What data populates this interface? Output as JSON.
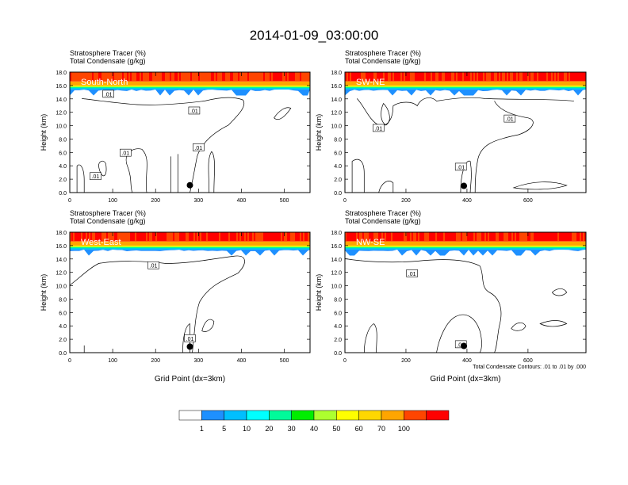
{
  "title": "2014-01-09_03:00:00",
  "panel_subtitle_1": "Stratosphere Tracer   (%)",
  "panel_subtitle_2": "Total Condensate   (g/kg)",
  "ylabel": "Height (km)",
  "xlabel": "Grid Point (dx=3km)",
  "contour_note": "Total Condensate Contours: .01 to .01 by .000",
  "chart_data": {
    "type": "heatmap",
    "colorbar": {
      "ticks": [
        "1",
        "5",
        "10",
        "20",
        "30",
        "40",
        "50",
        "60",
        "70",
        "100"
      ],
      "colors": [
        "#ffffff",
        "#1e90ff",
        "#00bfff",
        "#00ffff",
        "#00fa9a",
        "#00ee00",
        "#adff2f",
        "#ffff00",
        "#ffd700",
        "#ffa500",
        "#ff4500",
        "#ff0000"
      ]
    },
    "panels": [
      {
        "label": "South-North",
        "xlim": [
          0,
          560
        ],
        "xticks": [
          0,
          100,
          200,
          300,
          400,
          500
        ],
        "ylim": [
          0,
          18
        ],
        "yticks": [
          "0.0",
          "2.0",
          "4.0",
          "6.0",
          "8.0",
          "10.0",
          "12.0",
          "14.0",
          "16.0",
          "18.0"
        ],
        "contour_labels": [
          {
            "text": ".01",
            "x": 90,
            "y": 14.7
          },
          {
            "text": ".01",
            "x": 290,
            "y": 12.2
          },
          {
            "text": ".01",
            "x": 130,
            "y": 5.9
          },
          {
            "text": ".01",
            "x": 60,
            "y": 2.4
          },
          {
            "text": ".01",
            "x": 300,
            "y": 6.7
          }
        ],
        "marker": {
          "x": 280,
          "y": 1.1
        }
      },
      {
        "label": "SW-NE",
        "xlim": [
          0,
          790
        ],
        "xticks": [
          0,
          200,
          400,
          600
        ],
        "ylim": [
          0,
          18
        ],
        "yticks": [
          "0.0",
          "2.0",
          "4.0",
          "6.0",
          "8.0",
          "10.0",
          "12.0",
          "14.0",
          "16.0",
          "18.0"
        ],
        "contour_labels": [
          {
            "text": ".01",
            "x": 540,
            "y": 11.0
          },
          {
            "text": ".01",
            "x": 110,
            "y": 9.6
          },
          {
            "text": ".01",
            "x": 380,
            "y": 3.8
          }
        ],
        "marker": {
          "x": 390,
          "y": 1.0
        }
      },
      {
        "label": "West-East",
        "xlim": [
          0,
          560
        ],
        "xticks": [
          0,
          100,
          200,
          300,
          400,
          500
        ],
        "ylim": [
          0,
          18
        ],
        "yticks": [
          "0.0",
          "2.0",
          "4.0",
          "6.0",
          "8.0",
          "10.0",
          "12.0",
          "14.0",
          "16.0",
          "18.0"
        ],
        "contour_labels": [
          {
            "text": ".01",
            "x": 195,
            "y": 13.0
          },
          {
            "text": ".01",
            "x": 280,
            "y": 2.1
          }
        ],
        "marker": {
          "x": 280,
          "y": 0.9
        }
      },
      {
        "label": "NW-SE",
        "xlim": [
          0,
          790
        ],
        "xticks": [
          0,
          200,
          400,
          600
        ],
        "ylim": [
          0,
          18
        ],
        "yticks": [
          "0.0",
          "2.0",
          "4.0",
          "6.0",
          "8.0",
          "10.0",
          "12.0",
          "14.0",
          "16.0",
          "18.0"
        ],
        "contour_labels": [
          {
            "text": ".01",
            "x": 220,
            "y": 11.8
          },
          {
            "text": ".01",
            "x": 380,
            "y": 1.2
          }
        ],
        "marker": {
          "x": 390,
          "y": 1.0
        }
      }
    ]
  }
}
